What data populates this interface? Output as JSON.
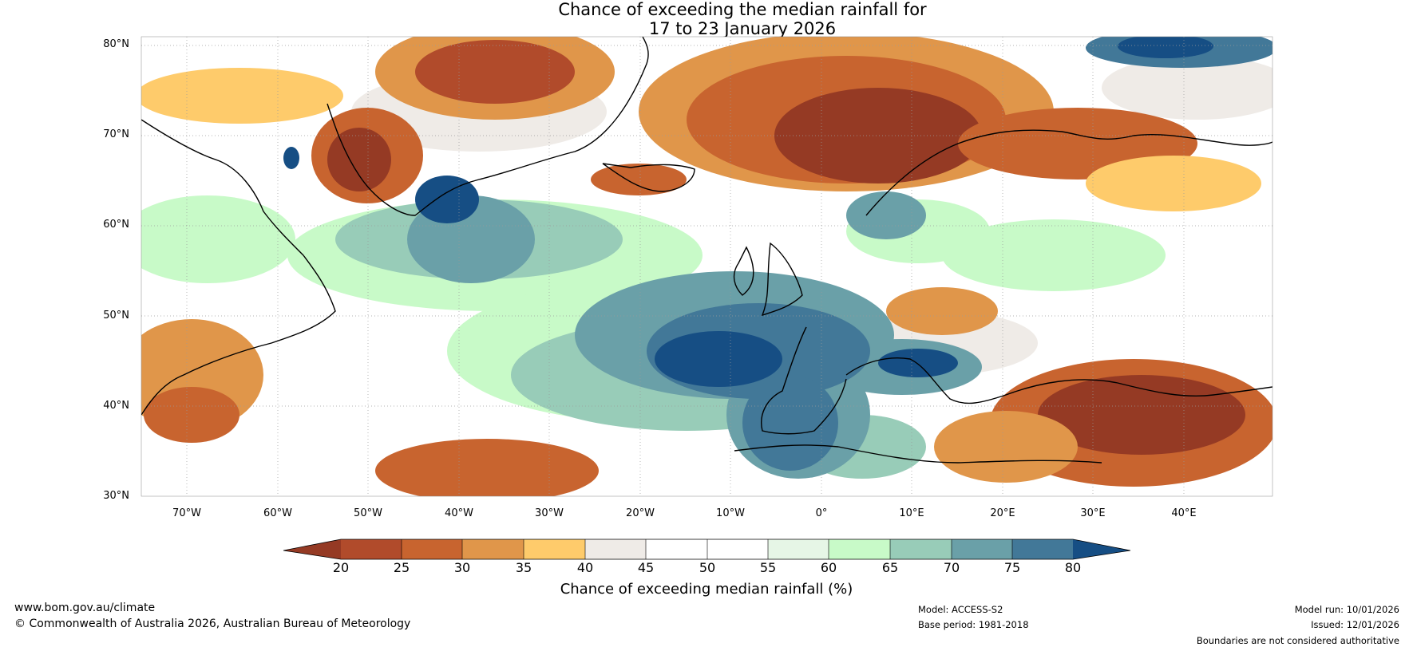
{
  "title": {
    "line1": "Chance of exceeding the median rainfall for",
    "line2": "17 to 23 January 2026"
  },
  "map": {
    "lat_labels": [
      "80°N",
      "70°N",
      "60°N",
      "50°N",
      "40°N",
      "30°N"
    ],
    "lon_labels": [
      "70°W",
      "60°W",
      "50°W",
      "40°W",
      "30°W",
      "20°W",
      "10°W",
      "0°",
      "10°E",
      "20°E",
      "30°E",
      "40°E"
    ]
  },
  "colorbar": {
    "ticks": [
      "20",
      "25",
      "30",
      "35",
      "40",
      "45",
      "50",
      "55",
      "60",
      "65",
      "70",
      "75",
      "80"
    ],
    "colors": [
      "#953a24",
      "#b14b2b",
      "#c8642f",
      "#e0964a",
      "#fecb6b",
      "#efebe7",
      "#ffffff",
      "#ffffff",
      "#e6f6e6",
      "#c8fac8",
      "#98ccb8",
      "#6aa0a8",
      "#427898",
      "#164e84"
    ],
    "label": "Chance of exceeding median rainfall (%)"
  },
  "footer": {
    "website": "www.bom.gov.au/climate",
    "copyright": "© Commonwealth of Australia 2026, Australian Bureau of Meteorology",
    "model": "Model: ACCESS-S2",
    "base_period": "Base period: 1981-2018",
    "model_run": "Model run: 10/01/2026",
    "issued": "Issued: 12/01/2026",
    "disclaimer": "Boundaries are not considered authoritative"
  }
}
